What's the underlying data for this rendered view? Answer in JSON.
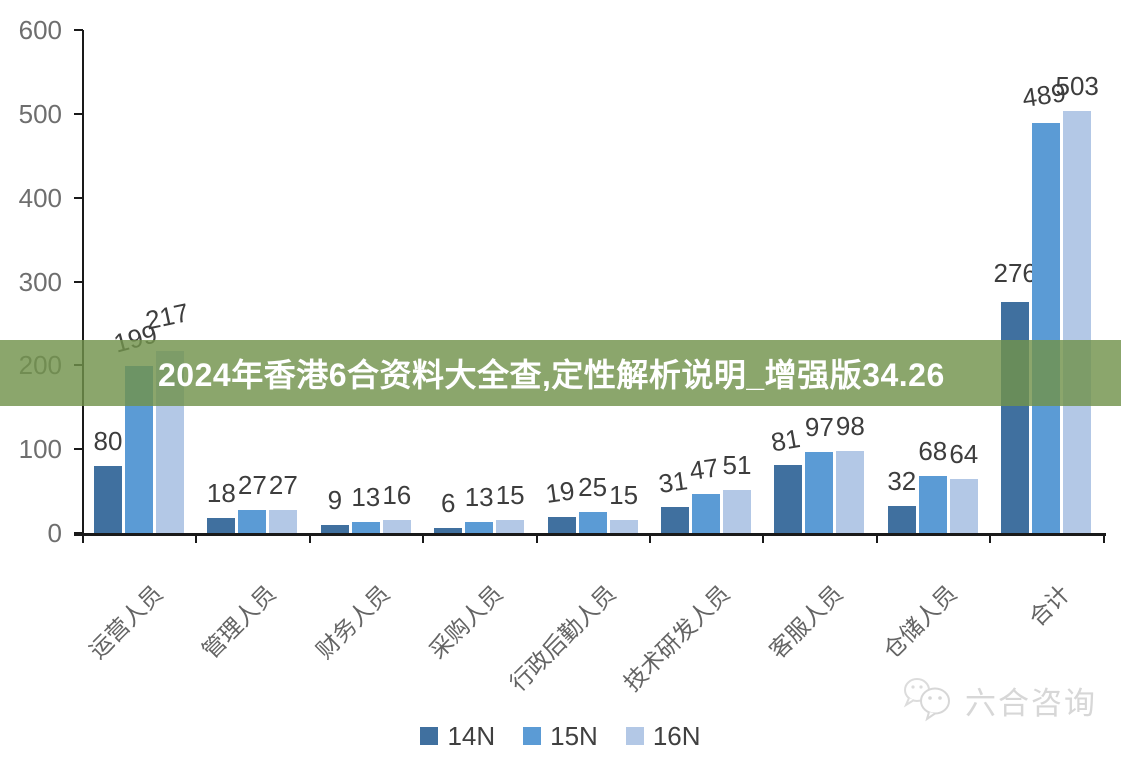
{
  "banner": {
    "text": "2024年香港6合资料大全查,定性解析说明_增强版34.26",
    "bg_rgba": "rgba(114,147,76,0.82)",
    "text_color": "#ffffff"
  },
  "watermark": {
    "text": "六合咨询",
    "icon": "wechat-chat-bubbles-icon",
    "color": "#d7d7d7"
  },
  "chart_data": {
    "type": "bar",
    "title": "",
    "xlabel": "",
    "ylabel": "",
    "categories": [
      "运营人员",
      "管理人员",
      "财务人员",
      "采购人员",
      "行政后勤人员",
      "技术研发人员",
      "客服人员",
      "仓储人员",
      "合计"
    ],
    "series": [
      {
        "name": "14N",
        "color": "#40709f",
        "values": [
          80,
          18,
          9,
          6,
          19,
          31,
          81,
          32,
          276
        ]
      },
      {
        "name": "15N",
        "color": "#5b9bd5",
        "values": [
          199,
          27,
          13,
          13,
          25,
          47,
          97,
          68,
          489
        ]
      },
      {
        "name": "16N",
        "color": "#b3c8e6",
        "values": [
          217,
          27,
          16,
          15,
          15,
          51,
          98,
          64,
          503
        ]
      }
    ],
    "ylim": [
      0,
      600
    ],
    "yticks": [
      0,
      100,
      200,
      300,
      400,
      500,
      600
    ],
    "grid": false,
    "legend_position": "bottom",
    "data_labels": true,
    "axis_color": "#1a1a1a",
    "ytick_label_color": "#6e6e6e",
    "data_label_color": "#3d3d3d",
    "category_label_color": "#646464",
    "label_adjust": {
      "1-0": {
        "rot": -15,
        "dy": 3
      },
      "2-0": {
        "rot": -12,
        "dy": 10
      },
      "0-4": {
        "rot": -8,
        "dy": 0
      },
      "0-5": {
        "rot": -8,
        "dy": 0
      },
      "1-5": {
        "rot": -8,
        "dy": 0
      },
      "0-6": {
        "rot": -10,
        "dy": 0
      },
      "0-8": {
        "rot": 0,
        "dy": 4
      },
      "1-8": {
        "rot": -8,
        "dy": 3
      }
    }
  }
}
